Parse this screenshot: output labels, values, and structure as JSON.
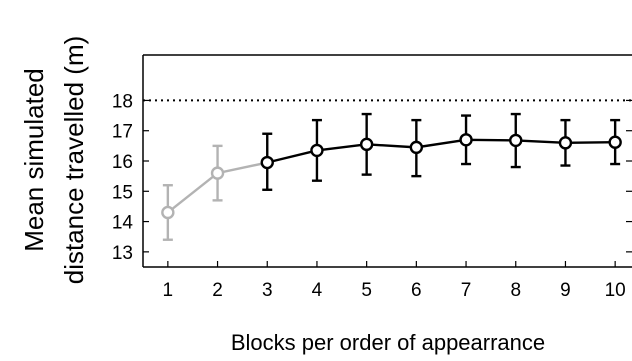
{
  "chart_data": {
    "type": "line",
    "xlabel": "Blocks per order of appearrance",
    "ylabel_lines": [
      "Mean simulated",
      "distance travelled (m)"
    ],
    "x_ticks": [
      1,
      2,
      3,
      4,
      5,
      6,
      7,
      8,
      9,
      10
    ],
    "y_ticks": [
      13,
      14,
      15,
      16,
      17,
      18
    ],
    "xlim": [
      0.5,
      10.5
    ],
    "ylim": [
      12.5,
      19.5
    ],
    "reference_line": {
      "y": 18,
      "style": "dotted"
    },
    "grid": false,
    "series": [
      {
        "color": "#b3b3b3",
        "points": [
          {
            "x": 1,
            "y": 14.3,
            "lo": 13.4,
            "hi": 15.2
          },
          {
            "x": 2,
            "y": 15.6,
            "lo": 14.7,
            "hi": 16.5
          },
          {
            "x": 3,
            "y": 15.95
          }
        ]
      },
      {
        "color": "#000000",
        "points": [
          {
            "x": 3,
            "y": 15.95,
            "lo": 15.05,
            "hi": 16.9
          },
          {
            "x": 4,
            "y": 16.35,
            "lo": 15.35,
            "hi": 17.35
          },
          {
            "x": 5,
            "y": 16.55,
            "lo": 15.55,
            "hi": 17.55
          },
          {
            "x": 6,
            "y": 16.45,
            "lo": 15.5,
            "hi": 17.35
          },
          {
            "x": 7,
            "y": 16.7,
            "lo": 15.9,
            "hi": 17.5
          },
          {
            "x": 8,
            "y": 16.68,
            "lo": 15.8,
            "hi": 17.55
          },
          {
            "x": 9,
            "y": 16.6,
            "lo": 15.85,
            "hi": 17.35
          },
          {
            "x": 10,
            "y": 16.62,
            "lo": 15.9,
            "hi": 17.35
          }
        ]
      }
    ]
  }
}
